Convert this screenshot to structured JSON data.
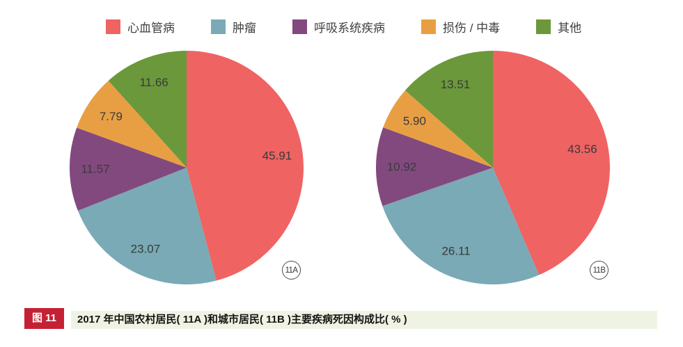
{
  "page": {
    "background": "#ffffff"
  },
  "legend": {
    "items": [
      {
        "label": "心血管病",
        "color": "#ef6362"
      },
      {
        "label": "肿瘤",
        "color": "#79aab6"
      },
      {
        "label": "呼吸系统疾病",
        "color": "#82497f"
      },
      {
        "label": "损伤 / 中毒",
        "color": "#e89f44"
      },
      {
        "label": "其他",
        "color": "#6b983a"
      }
    ]
  },
  "chart_data": [
    {
      "type": "pie",
      "badge": "11A",
      "group": "农村居民",
      "unit": "%",
      "categories": [
        "心血管病",
        "肿瘤",
        "呼吸系统疾病",
        "损伤 / 中毒",
        "其他"
      ],
      "values": [
        45.91,
        23.07,
        11.57,
        7.79,
        11.66
      ],
      "colors": [
        "#ef6362",
        "#79aab6",
        "#82497f",
        "#e89f44",
        "#6b983a"
      ],
      "start_angle_deg": 0,
      "direction": "clockwise",
      "value_format": "0.00",
      "label_radius_ratio": 0.78
    },
    {
      "type": "pie",
      "badge": "11B",
      "group": "城市居民",
      "unit": "%",
      "categories": [
        "心血管病",
        "肿瘤",
        "呼吸系统疾病",
        "损伤 / 中毒",
        "其他"
      ],
      "values": [
        43.56,
        26.11,
        10.92,
        5.9,
        13.51
      ],
      "colors": [
        "#ef6362",
        "#79aab6",
        "#82497f",
        "#e89f44",
        "#6b983a"
      ],
      "start_angle_deg": 0,
      "direction": "clockwise",
      "value_format": "0.00",
      "label_radius_ratio": 0.78
    }
  ],
  "caption": {
    "tag": "图 11",
    "tag_color": "#c52134",
    "bar_color": "#eff3e3",
    "text": "2017 年中国农村居民( 11A )和城市居民( 11B )主要疾病死因构成比( % )"
  }
}
